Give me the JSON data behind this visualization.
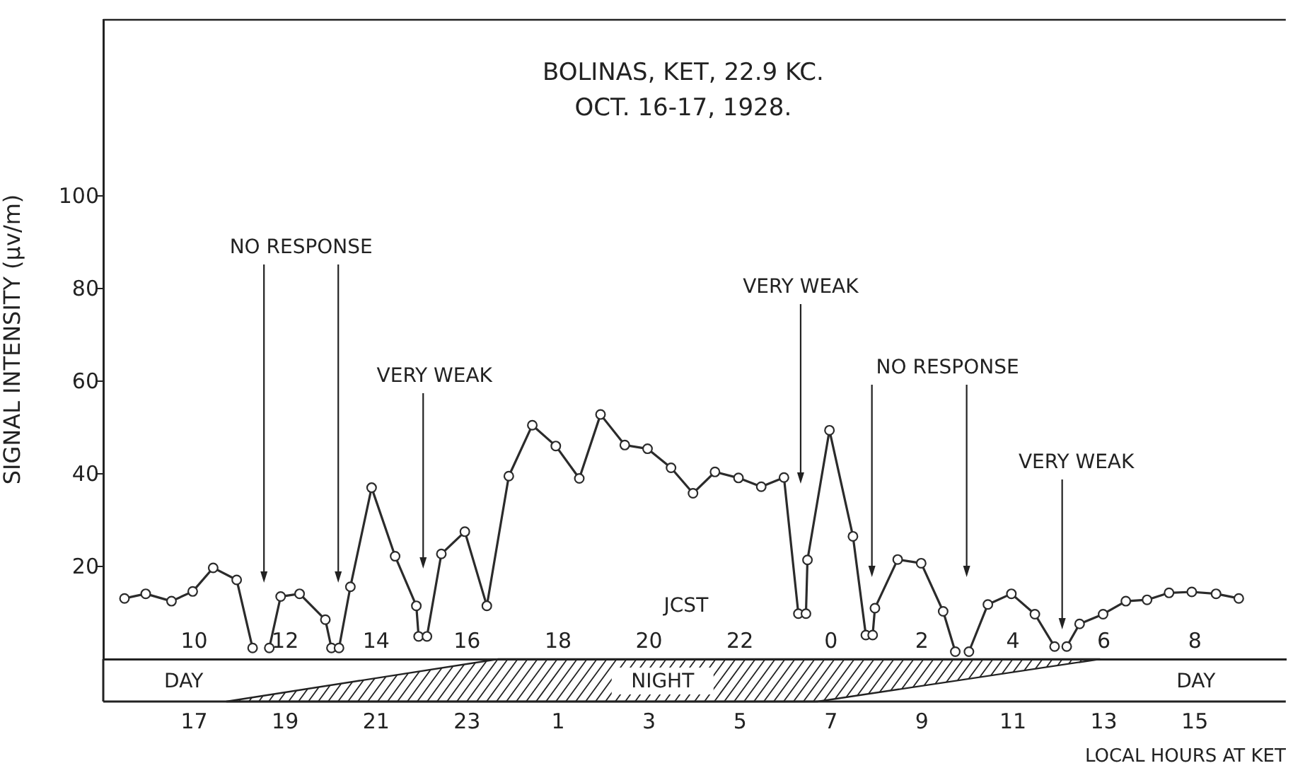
{
  "chart_data": {
    "type": "line",
    "title": "BOLINAS, KET, 22.9 KC.",
    "subtitle": "OCT. 16-17, 1928.",
    "xlabel": "JCST",
    "x2label": "LOCAL HOURS AT KET",
    "ylabel": "SIGNAL INTENSITY (μv/m)",
    "x": [
      "1928-10-16T08:28",
      "1928-10-16T08:56",
      "1928-10-16T09:30",
      "1928-10-16T09:58",
      "1928-10-16T10:25",
      "1928-10-16T10:56",
      "1928-10-16T11:17",
      "1928-10-16T11:32",
      "1928-10-16T11:39",
      "1928-10-16T11:54",
      "1928-10-16T12:19",
      "1928-10-16T12:53",
      "1928-10-16T13:01",
      "1928-10-16T13:10",
      "1928-10-16T13:11",
      "1928-10-16T13:26",
      "1928-10-16T13:54",
      "1928-10-16T14:25",
      "1928-10-16T14:53",
      "1928-10-16T14:56",
      "1928-10-16T15:02",
      "1928-10-16T15:07",
      "1928-10-16T15:26",
      "1928-10-16T15:57",
      "1928-10-16T16:26",
      "1928-10-16T16:55",
      "1928-10-16T17:26",
      "1928-10-16T17:57",
      "1928-10-16T18:28",
      "1928-10-16T18:56",
      "1928-10-16T19:28",
      "1928-10-16T19:58",
      "1928-10-16T20:29",
      "1928-10-16T20:58",
      "1928-10-16T21:27",
      "1928-10-16T21:58",
      "1928-10-16T22:28",
      "1928-10-16T22:58",
      "1928-10-16T23:17",
      "1928-10-16T23:20",
      "1928-10-16T23:27",
      "1928-10-16T23:29",
      "1928-10-16T23:58",
      "1928-10-17T00:29",
      "1928-10-17T00:46",
      "1928-10-17T00:54",
      "1928-10-17T00:55",
      "1928-10-17T00:58",
      "1928-10-17T01:28",
      "1928-10-17T01:59",
      "1928-10-17T02:28",
      "1928-10-17T02:44",
      "1928-10-17T02:59",
      "1928-10-17T03:02",
      "1928-10-17T03:27",
      "1928-10-17T03:58",
      "1928-10-17T04:29",
      "1928-10-17T04:55",
      "1928-10-17T05:05",
      "1928-10-17T05:11",
      "1928-10-17T05:28",
      "1928-10-17T05:59",
      "1928-10-17T06:29",
      "1928-10-17T06:57",
      "1928-10-17T07:26",
      "1928-10-17T07:56",
      "1928-10-17T08:28",
      "1928-10-17T08:58"
    ],
    "series": [
      {
        "color": "#2b2b2b",
        "values": [
          13.1,
          14.1,
          12.5,
          14.6,
          19.7,
          17.1,
          2.4,
          null,
          2.4,
          13.5,
          14.1,
          8.5,
          2.4,
          null,
          2.4,
          15.6,
          37.0,
          22.2,
          11.5,
          4.9,
          null,
          4.9,
          22.7,
          27.5,
          11.5,
          39.5,
          50.5,
          46.0,
          39.0,
          52.8,
          46.2,
          45.4,
          41.3,
          35.8,
          40.4,
          39.1,
          37.2,
          39.2,
          9.8,
          null,
          9.8,
          21.4,
          49.4,
          26.5,
          5.2,
          null,
          5.2,
          11.0,
          21.5,
          20.7,
          10.3,
          1.6,
          null,
          1.6,
          11.8,
          14.1,
          9.7,
          2.7,
          null,
          2.7,
          7.6,
          9.7,
          12.5,
          12.8,
          14.3,
          14.5,
          14.1,
          13.1
        ]
      }
    ],
    "xlim": [
      "1928-10-16T08:00",
      "1928-10-17T10:00"
    ],
    "xticks": [
      {
        "value": "1928-10-16T10:00",
        "label": "10"
      },
      {
        "value": "1928-10-16T12:00",
        "label": "12"
      },
      {
        "value": "1928-10-16T14:00",
        "label": "14"
      },
      {
        "value": "1928-10-16T16:00",
        "label": "16"
      },
      {
        "value": "1928-10-16T18:00",
        "label": "18"
      },
      {
        "value": "1928-10-16T20:00",
        "label": "20"
      },
      {
        "value": "1928-10-16T22:00",
        "label": "22"
      },
      {
        "value": "1928-10-17T00:00",
        "label": "0"
      },
      {
        "value": "1928-10-17T02:00",
        "label": "2"
      },
      {
        "value": "1928-10-17T04:00",
        "label": "4"
      },
      {
        "value": "1928-10-17T06:00",
        "label": "6"
      },
      {
        "value": "1928-10-17T08:00",
        "label": "8"
      }
    ],
    "x2lim": [
      "1928-10-15T15:00",
      "1928-10-16T17:00"
    ],
    "x2ticks": [
      {
        "value": "1928-10-15T17:00",
        "label": "17"
      },
      {
        "value": "1928-10-15T19:00",
        "label": "19"
      },
      {
        "value": "1928-10-15T21:00",
        "label": "21"
      },
      {
        "value": "1928-10-15T23:00",
        "label": "23"
      },
      {
        "value": "1928-10-16T01:00",
        "label": "1"
      },
      {
        "value": "1928-10-16T03:00",
        "label": "3"
      },
      {
        "value": "1928-10-16T05:00",
        "label": "5"
      },
      {
        "value": "1928-10-16T07:00",
        "label": "7"
      },
      {
        "value": "1928-10-16T09:00",
        "label": "9"
      },
      {
        "value": "1928-10-16T11:00",
        "label": "11"
      },
      {
        "value": "1928-10-16T13:00",
        "label": "13"
      },
      {
        "value": "1928-10-16T15:00",
        "label": "15"
      }
    ],
    "ylim": [
      0,
      138
    ],
    "yticks": [
      20,
      40,
      60,
      80,
      100
    ],
    "annotations": [
      "NO RESPONSE",
      "VERY WEAK",
      "VERY WEAK",
      "NO RESPONSE",
      "VERY WEAK",
      "DAY",
      "NIGHT",
      "DAY"
    ],
    "grid": false,
    "legend": false,
    "marker": "circle",
    "line_style": "solid"
  }
}
